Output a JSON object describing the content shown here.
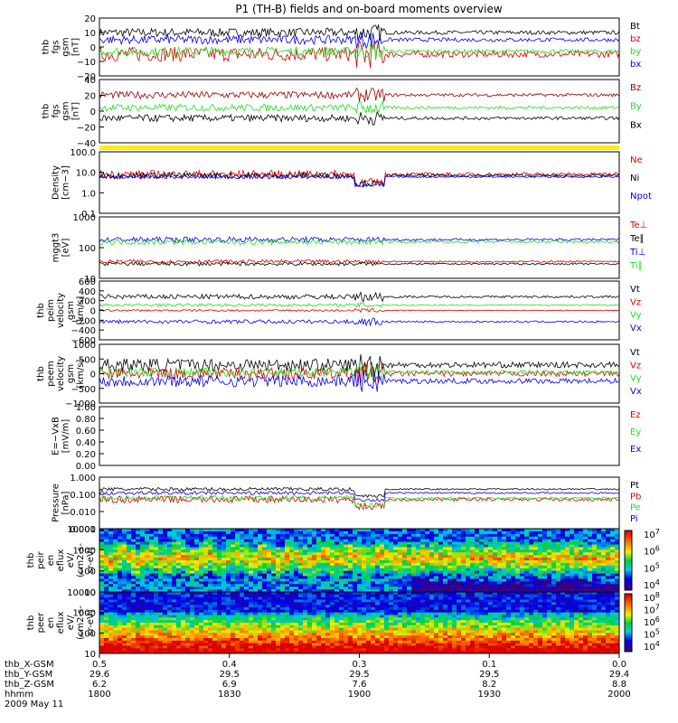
{
  "title": "P1 (TH-B) fields and on-board moments overview",
  "colors": {
    "black": "#000000",
    "red": "#dd0000",
    "darkred": "#990000",
    "green": "#22dd22",
    "blue": "#0000ee",
    "yellow": "#ffee00"
  },
  "chart_data": [
    {
      "type": "line",
      "id": "fgs_gsm",
      "ylabel": [
        "thb",
        "fgs",
        "gsm",
        "[nT]"
      ],
      "ylim": [
        -20,
        20
      ],
      "scale": "linear",
      "ticks": [
        "20",
        "10",
        "0",
        "−10",
        "−20"
      ],
      "series": [
        {
          "name": "Bt",
          "color": "black",
          "level": 10,
          "noise": 3
        },
        {
          "name": "bz",
          "color": "red",
          "level": -5,
          "noise": 5
        },
        {
          "name": "by",
          "color": "green",
          "level": -3,
          "noise": 3
        },
        {
          "name": "bx",
          "color": "blue",
          "level": 5,
          "noise": 3
        }
      ]
    },
    {
      "type": "line",
      "id": "fgs_gsm2",
      "ylabel": [
        "thb",
        "fgs",
        "gsm",
        "[nT]"
      ],
      "ylim": [
        -50,
        40
      ],
      "scale": "linear",
      "ticks": [
        "40",
        "20",
        "0",
        "−20",
        "−40"
      ],
      "series": [
        {
          "name": "Bz",
          "color": "darkred",
          "level": 18,
          "noise": 5
        },
        {
          "name": "By",
          "color": "green",
          "level": 0,
          "noise": 5
        },
        {
          "name": "Bx",
          "color": "black",
          "level": -15,
          "noise": 5
        }
      ]
    },
    {
      "type": "line",
      "id": "density",
      "ylabel": [
        "Density",
        "[cm−3]"
      ],
      "ylim": [
        0.1,
        100
      ],
      "scale": "log",
      "ticks": [
        "100.0",
        "10.0",
        "1.0",
        "0.1"
      ],
      "series": [
        {
          "name": "Ne",
          "color": "red",
          "level": 8,
          "noise": 0.2
        },
        {
          "name": "Ni",
          "color": "black",
          "level": 7,
          "noise": 0.15
        },
        {
          "name": "Npot",
          "color": "blue",
          "level": 6,
          "noise": 0.1
        }
      ]
    },
    {
      "type": "line",
      "id": "temp",
      "ylabel": [
        "mggt3",
        "[eV]"
      ],
      "ylim": [
        5,
        10000
      ],
      "scale": "log",
      "ticks": [
        "1000",
        "100",
        "10"
      ],
      "series": [
        {
          "name": "Te⊥",
          "color": "red",
          "level": 40,
          "noise": 0.1
        },
        {
          "name": "Te∥",
          "color": "black",
          "level": 30,
          "noise": 0.1
        },
        {
          "name": "Ti⊥",
          "color": "blue",
          "level": 600,
          "noise": 0.15
        },
        {
          "name": "Ti∥",
          "color": "green",
          "level": 450,
          "noise": 0.15
        }
      ]
    },
    {
      "type": "line",
      "id": "peim_vel",
      "ylabel": [
        "thb",
        "peim",
        "velocity",
        "gsm",
        "[km/s]"
      ],
      "ylim": [
        -600,
        600
      ],
      "scale": "linear",
      "ticks": [
        "600",
        "400",
        "200",
        "0",
        "−200",
        "−400",
        "−600"
      ],
      "series": [
        {
          "name": "Vt",
          "color": "black",
          "level": 280,
          "noise": 50
        },
        {
          "name": "Vz",
          "color": "red",
          "level": 0,
          "noise": 20
        },
        {
          "name": "Vy",
          "color": "green",
          "level": 110,
          "noise": 30
        },
        {
          "name": "Vx",
          "color": "blue",
          "level": -230,
          "noise": 40
        }
      ]
    },
    {
      "type": "line",
      "id": "peem_vel",
      "ylabel": [
        "thb",
        "peem",
        "velocity",
        "gsm",
        "[km/s]"
      ],
      "ylim": [
        -1000,
        1000
      ],
      "scale": "linear",
      "ticks": [
        "1000",
        "500",
        "0",
        "−500",
        "−1000"
      ],
      "series": [
        {
          "name": "Vt",
          "color": "black",
          "level": 300,
          "noise": 220
        },
        {
          "name": "Vz",
          "color": "red",
          "level": 0,
          "noise": 200
        },
        {
          "name": "Vy",
          "color": "green",
          "level": 50,
          "noise": 150
        },
        {
          "name": "Vx",
          "color": "blue",
          "level": -250,
          "noise": 200
        }
      ]
    },
    {
      "type": "line",
      "id": "efield",
      "ylabel": [
        "E=−VxB",
        "[mV/m]"
      ],
      "ylim": [
        0,
        1
      ],
      "scale": "linear",
      "ticks": [
        "1.00",
        "0.80",
        "0.60",
        "0.40",
        "0.20",
        "0.00"
      ],
      "series": [
        {
          "name": "Ez",
          "color": "red",
          "empty": true
        },
        {
          "name": "Ey",
          "color": "green",
          "empty": true
        },
        {
          "name": "Ex",
          "color": "blue",
          "empty": true
        }
      ]
    },
    {
      "type": "line",
      "id": "pressure",
      "ylabel": [
        "Pressure",
        "[nPa]"
      ],
      "ylim": [
        0.001,
        1
      ],
      "scale": "log",
      "ticks": [
        "1.000",
        "0.100",
        "0.010",
        "0.001"
      ],
      "series": [
        {
          "name": "Pt",
          "color": "black",
          "level": 0.2,
          "noise": 0.1
        },
        {
          "name": "Pb",
          "color": "red",
          "level": 0.05,
          "noise": 0.2
        },
        {
          "name": "Pe",
          "color": "green",
          "level": 0.06,
          "noise": 0.15
        },
        {
          "name": "Pi",
          "color": "blue",
          "level": 0.12,
          "noise": 0.1
        }
      ]
    },
    {
      "type": "heatmap",
      "id": "peir",
      "ylabel": [
        "thb",
        "peir",
        "en",
        "eflux",
        "eV/",
        "(cm2-s-",
        "sr-eV)"
      ],
      "ticks": [
        "10000",
        "1000",
        "100",
        "10"
      ],
      "colorbar": [
        "10^7",
        "10^6",
        "10^5",
        "10^4"
      ]
    },
    {
      "type": "heatmap",
      "id": "peer",
      "ylabel": [
        "thb",
        "peer",
        "en",
        "eflux",
        "eV/",
        "(cm2-s-",
        "sr-eV)"
      ],
      "ticks": [
        "10000",
        "1000",
        "100",
        "10"
      ],
      "colorbar": [
        "10^8",
        "10^7",
        "10^6",
        "10^5",
        "10^4"
      ]
    }
  ],
  "x_axis": {
    "rows": [
      {
        "label": "thb_X-GSM",
        "values": [
          "0.5",
          "0.4",
          "0.3",
          "0.1",
          "0.0"
        ]
      },
      {
        "label": "thb_Y-GSM",
        "values": [
          "29.6",
          "29.5",
          "29.5",
          "29.5",
          "29.4"
        ]
      },
      {
        "label": "thb_Z-GSM",
        "values": [
          "6.2",
          "6.9",
          "7.6",
          "8.2",
          "8.8"
        ]
      },
      {
        "label": "hhmm",
        "values": [
          "1800",
          "1830",
          "1900",
          "1930",
          "2000"
        ]
      }
    ],
    "date": "2009 May 11"
  }
}
